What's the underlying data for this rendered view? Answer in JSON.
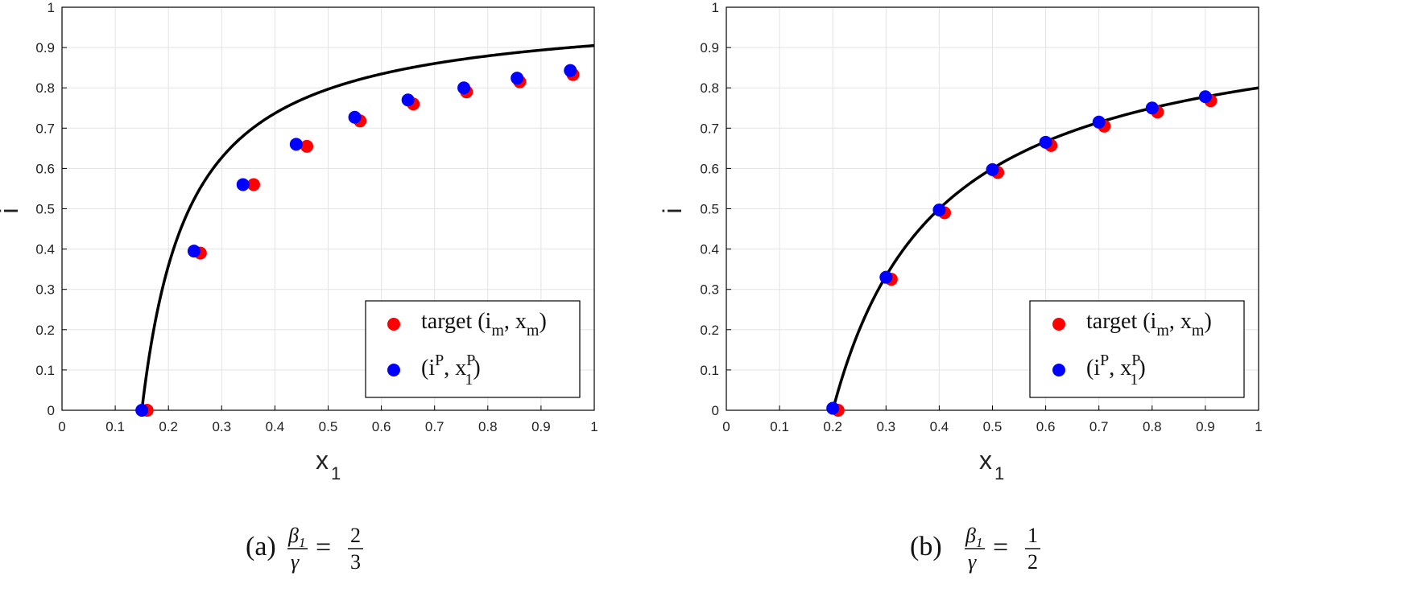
{
  "chart_data": [
    {
      "type": "scatter",
      "xlabel": "x",
      "xlabel_sub": "1",
      "ylabel": "i",
      "xlim": [
        0,
        1
      ],
      "ylim": [
        0,
        1
      ],
      "ticks": [
        "0",
        "0.1",
        "0.2",
        "0.3",
        "0.4",
        "0.5",
        "0.6",
        "0.7",
        "0.8",
        "0.9",
        "1"
      ],
      "grid": true,
      "legend_position": "bottom-right",
      "curve": {
        "x0": 0.15,
        "a": 0.0893,
        "color": "#000000"
      },
      "series": [
        {
          "name": "target (i_m, x_m)",
          "color": "#ff0000",
          "points": [
            [
              0.16,
              0.0
            ],
            [
              0.26,
              0.39
            ],
            [
              0.36,
              0.56
            ],
            [
              0.46,
              0.655
            ],
            [
              0.56,
              0.718
            ],
            [
              0.66,
              0.76
            ],
            [
              0.76,
              0.79
            ],
            [
              0.86,
              0.815
            ],
            [
              0.96,
              0.833
            ]
          ]
        },
        {
          "name": "(i^P, x_1^P)",
          "color": "#0000ff",
          "points": [
            [
              0.15,
              0.0
            ],
            [
              0.248,
              0.395
            ],
            [
              0.34,
              0.56
            ],
            [
              0.44,
              0.66
            ],
            [
              0.55,
              0.727
            ],
            [
              0.65,
              0.77
            ],
            [
              0.755,
              0.8
            ],
            [
              0.855,
              0.824
            ],
            [
              0.955,
              0.843
            ]
          ]
        }
      ],
      "caption": {
        "label": "(a)",
        "ratio_num": "2",
        "ratio_den": "3"
      }
    },
    {
      "type": "scatter",
      "xlabel": "x",
      "xlabel_sub": "1",
      "ylabel": "i",
      "xlim": [
        0,
        1
      ],
      "ylim": [
        0,
        1
      ],
      "ticks": [
        "0",
        "0.1",
        "0.2",
        "0.3",
        "0.4",
        "0.5",
        "0.6",
        "0.7",
        "0.8",
        "0.9",
        "1"
      ],
      "grid": true,
      "legend_position": "bottom-right",
      "curve": {
        "x0": 0.2,
        "a": 0.2,
        "color": "#000000"
      },
      "series": [
        {
          "name": "target (i_m, x_m)",
          "color": "#ff0000",
          "points": [
            [
              0.21,
              0.0
            ],
            [
              0.31,
              0.325
            ],
            [
              0.41,
              0.49
            ],
            [
              0.51,
              0.59
            ],
            [
              0.61,
              0.657
            ],
            [
              0.71,
              0.705
            ],
            [
              0.81,
              0.74
            ],
            [
              0.91,
              0.768
            ]
          ]
        },
        {
          "name": "(i^P, x_1^P)",
          "color": "#0000ff",
          "points": [
            [
              0.2,
              0.005
            ],
            [
              0.3,
              0.33
            ],
            [
              0.4,
              0.497
            ],
            [
              0.5,
              0.597
            ],
            [
              0.6,
              0.665
            ],
            [
              0.7,
              0.715
            ],
            [
              0.8,
              0.75
            ],
            [
              0.9,
              0.778
            ]
          ]
        }
      ],
      "caption": {
        "label": "(b)",
        "ratio_num": "1",
        "ratio_den": "2"
      }
    }
  ],
  "legend": {
    "target_text": "target (i",
    "target_sub1": "m",
    "target_mid": ", x",
    "target_sub2": "m",
    "target_close": ")",
    "pred_open": "(i",
    "pred_sup1": "P",
    "pred_mid": ", x",
    "pred_sup2": "P",
    "pred_sub2": "1",
    "pred_close": ")"
  },
  "caption_parts": {
    "beta": "β",
    "beta_sub": "1",
    "gamma": "γ",
    "equals": "="
  }
}
